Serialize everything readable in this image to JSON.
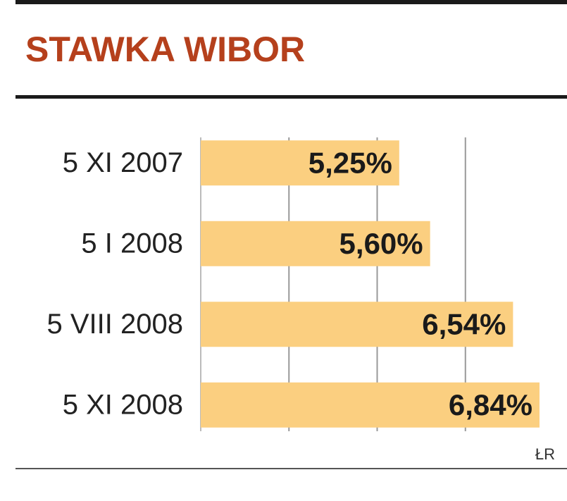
{
  "chart_data": {
    "type": "barh",
    "title": "STAWKA WIBOR",
    "categories": [
      "5 XI 2007",
      "5 I 2008",
      "5 VIII 2008",
      "5 XI 2008"
    ],
    "values": [
      5.25,
      5.6,
      6.54,
      6.84
    ],
    "value_labels": [
      "5,25%",
      "5,60%",
      "6,54%",
      "6,84%"
    ],
    "color": "#fbcf80",
    "xlim": [
      3,
      7
    ],
    "xticks": [
      4,
      5,
      6
    ],
    "grid": true,
    "source": "ŁR"
  }
}
